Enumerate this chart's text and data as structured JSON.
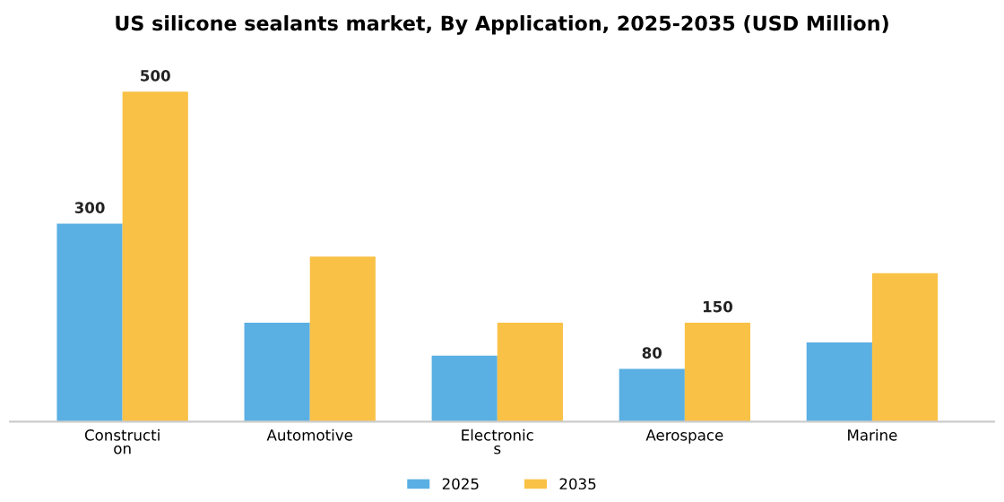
{
  "chart_data": {
    "type": "bar",
    "title": "US silicone sealants market, By Application, 2025-2035 (USD Million)",
    "categories": [
      "Constructi\non",
      "Automotive",
      "Electronic\ns",
      "Aerospace",
      "Marine"
    ],
    "series": [
      {
        "name": "2025",
        "color": "#5aafe3",
        "values": [
          300,
          150,
          100,
          80,
          120
        ],
        "value_labels": [
          "300",
          null,
          null,
          "80",
          null
        ]
      },
      {
        "name": "2035",
        "color": "#f9c145",
        "values": [
          500,
          250,
          150,
          150,
          225
        ],
        "value_labels": [
          "500",
          null,
          null,
          "150",
          null
        ]
      }
    ],
    "legend": "bottom",
    "grid": false
  }
}
